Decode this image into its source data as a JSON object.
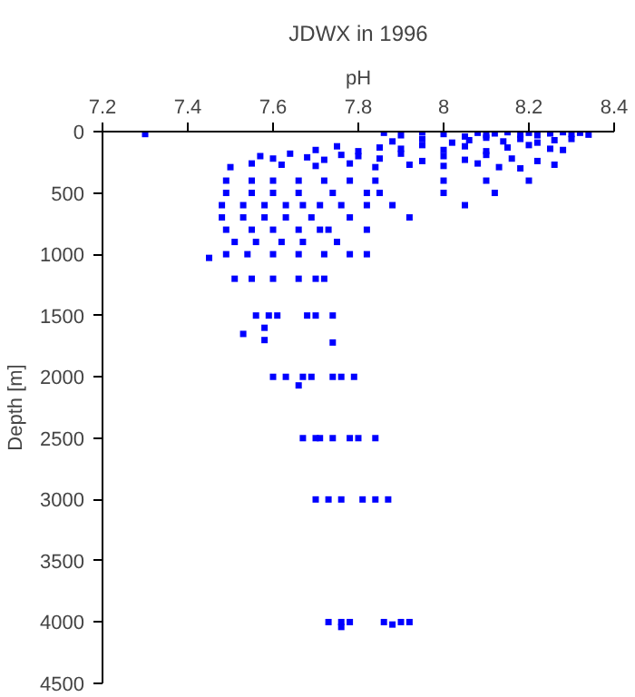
{
  "chart_data": {
    "type": "scatter",
    "title": "JDWX in 1996",
    "xlabel": "pH",
    "ylabel": "Depth [m]",
    "xlim": [
      7.2,
      8.4
    ],
    "xticks": [
      7.2,
      7.4,
      7.6,
      7.8,
      8,
      8.2,
      8.4
    ],
    "ylim": [
      4500,
      0
    ],
    "yticks": [
      0,
      500,
      1000,
      1500,
      2000,
      2500,
      3000,
      3500,
      4000,
      4500
    ],
    "grid": false,
    "marker": "square",
    "series": [
      {
        "color": "#0000ff",
        "x": [
          7.3,
          7.86,
          7.9,
          7.95,
          8.0,
          8.05,
          8.08,
          8.1,
          8.12,
          8.15,
          8.18,
          8.2,
          8.22,
          8.25,
          8.28,
          8.3,
          8.32,
          8.34,
          7.88,
          7.95,
          8.02,
          8.06,
          8.1,
          8.14,
          8.18,
          8.22,
          8.26,
          8.3,
          7.7,
          7.75,
          7.8,
          7.85,
          7.9,
          7.95,
          8.0,
          8.05,
          8.1,
          8.15,
          8.2,
          8.25,
          8.28,
          7.57,
          7.6,
          7.64,
          7.68,
          7.72,
          7.76,
          7.8,
          7.85,
          7.9,
          7.95,
          8.0,
          8.05,
          8.1,
          8.16,
          8.22,
          7.5,
          7.55,
          7.62,
          7.7,
          7.78,
          7.84,
          7.92,
          8.0,
          8.08,
          8.13,
          8.18,
          8.26,
          7.49,
          7.55,
          7.6,
          7.66,
          7.72,
          7.78,
          7.84,
          8.0,
          8.1,
          8.2,
          7.49,
          7.55,
          7.6,
          7.66,
          7.74,
          7.82,
          7.85,
          8.0,
          8.12,
          8.05,
          7.48,
          7.53,
          7.58,
          7.63,
          7.67,
          7.71,
          7.76,
          7.82,
          7.88,
          7.48,
          7.53,
          7.58,
          7.63,
          7.69,
          7.78,
          7.92,
          7.49,
          7.55,
          7.6,
          7.66,
          7.71,
          7.73,
          7.82,
          7.51,
          7.56,
          7.62,
          7.67,
          7.75,
          7.45,
          7.49,
          7.54,
          7.6,
          7.66,
          7.72,
          7.78,
          7.82,
          7.51,
          7.55,
          7.6,
          7.66,
          7.7,
          7.72,
          7.56,
          7.59,
          7.61,
          7.68,
          7.7,
          7.74,
          7.53,
          7.58,
          7.58,
          7.74,
          7.6,
          7.63,
          7.67,
          7.69,
          7.74,
          7.76,
          7.79,
          7.66,
          7.67,
          7.7,
          7.71,
          7.74,
          7.78,
          7.8,
          7.84,
          7.7,
          7.73,
          7.76,
          7.81,
          7.84,
          7.87,
          7.73,
          7.76,
          7.78,
          7.76,
          7.86,
          7.88,
          7.9,
          7.92
        ],
        "values": [
          20,
          10,
          30,
          5,
          20,
          40,
          10,
          30,
          15,
          5,
          25,
          10,
          30,
          15,
          5,
          20,
          10,
          25,
          80,
          60,
          90,
          70,
          50,
          80,
          60,
          90,
          70,
          60,
          150,
          120,
          160,
          130,
          140,
          110,
          150,
          120,
          160,
          130,
          110,
          140,
          150,
          200,
          220,
          180,
          210,
          230,
          190,
          200,
          220,
          180,
          240,
          200,
          230,
          190,
          220,
          240,
          290,
          260,
          270,
          280,
          260,
          290,
          270,
          280,
          260,
          290,
          300,
          270,
          400,
          400,
          400,
          400,
          400,
          400,
          400,
          400,
          400,
          400,
          500,
          500,
          500,
          500,
          500,
          500,
          500,
          500,
          500,
          600,
          600,
          600,
          600,
          600,
          600,
          600,
          600,
          600,
          600,
          700,
          700,
          700,
          700,
          700,
          700,
          700,
          800,
          800,
          800,
          800,
          800,
          800,
          800,
          900,
          900,
          900,
          900,
          900,
          1030,
          1000,
          1000,
          1000,
          1000,
          1000,
          1000,
          1000,
          1200,
          1200,
          1200,
          1200,
          1200,
          1200,
          1500,
          1500,
          1500,
          1500,
          1500,
          1500,
          1650,
          1600,
          1700,
          1720,
          2000,
          2000,
          2000,
          2000,
          2000,
          2000,
          2000,
          2070,
          2500,
          2500,
          2500,
          2500,
          2500,
          2500,
          2500,
          3000,
          3000,
          3000,
          3000,
          3000,
          3000,
          4000,
          4040,
          4000,
          4000,
          4000,
          4020,
          4000,
          4000
        ]
      }
    ]
  }
}
